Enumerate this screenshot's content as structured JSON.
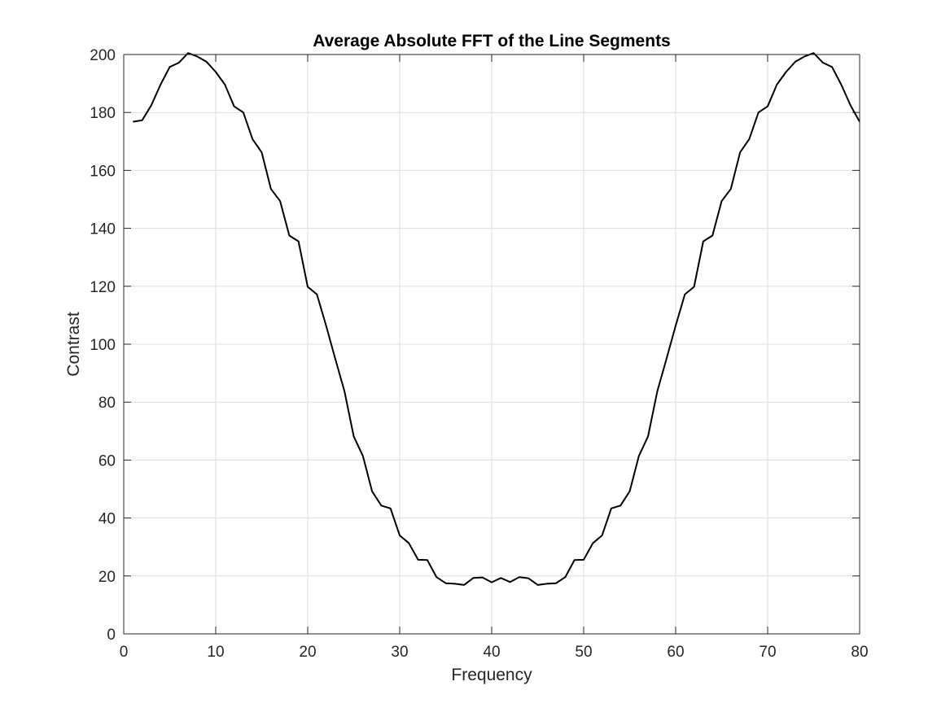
{
  "chart_data": {
    "type": "line",
    "title": "Average Absolute FFT of the Line Segments",
    "xlabel": "Frequency",
    "ylabel": "Contrast",
    "xlim": [
      0,
      80
    ],
    "ylim": [
      0,
      200
    ],
    "xticks": [
      0,
      10,
      20,
      30,
      40,
      50,
      60,
      70,
      80
    ],
    "yticks": [
      0,
      20,
      40,
      60,
      80,
      100,
      120,
      140,
      160,
      180,
      200
    ],
    "grid": true,
    "legend": "none",
    "colors": {
      "series": "#000000",
      "grid": "#dedede",
      "axes": "#262626"
    },
    "series": [
      {
        "x": [
          1,
          2,
          3,
          4,
          5,
          6,
          7,
          8,
          9,
          10,
          11,
          12,
          13,
          14,
          15,
          16,
          17,
          18,
          19,
          20,
          21,
          22,
          23,
          24,
          25,
          26,
          27,
          28,
          29,
          30,
          31,
          32,
          33,
          34,
          35,
          36,
          37,
          38,
          39,
          40,
          41,
          42,
          43,
          44,
          45,
          46,
          47,
          48,
          49,
          50,
          51,
          52,
          53,
          54,
          55,
          56,
          57,
          58,
          59,
          60,
          61,
          62,
          63,
          64,
          65,
          66,
          67,
          68,
          69,
          70,
          71,
          72,
          73,
          74,
          75,
          76,
          77,
          78,
          79,
          80
        ],
        "values": [
          176.8,
          177.3,
          182.5,
          189.6,
          195.7,
          197.2,
          200.5,
          199.3,
          197.5,
          194,
          189.6,
          182.1,
          180,
          170.8,
          166.2,
          153.6,
          149.4,
          137.5,
          135.5,
          119.8,
          117.2,
          106.4,
          94.9,
          83.7,
          68.2,
          61.4,
          49.2,
          44.3,
          43.3,
          34,
          31.3,
          25.6,
          25.5,
          19.6,
          17.5,
          17.3,
          16.9,
          19.3,
          19.5,
          17.8,
          19.3,
          17.9,
          19.6,
          19.2,
          16.9,
          17.3,
          17.5,
          19.6,
          25.5,
          25.6,
          31.3,
          34,
          43.3,
          44.3,
          49.2,
          61.4,
          68.2,
          83.7,
          94.9,
          106.4,
          117.2,
          119.8,
          135.5,
          137.5,
          149.4,
          153.6,
          166.2,
          170.8,
          180,
          182.1,
          189.6,
          194,
          197.5,
          199.3,
          200.5,
          197.2,
          195.7,
          189.6,
          182.5,
          176.8
        ]
      }
    ]
  }
}
